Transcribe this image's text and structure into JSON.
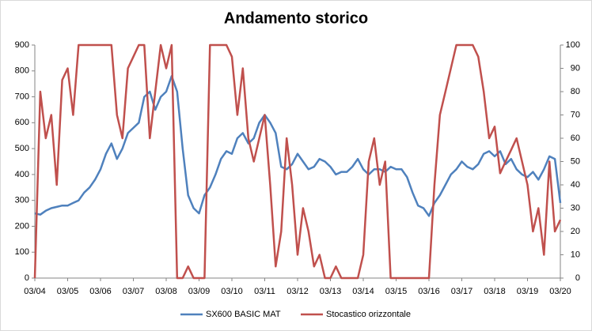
{
  "chart_data": {
    "type": "line",
    "title": "Andamento storico",
    "categories": [
      "03/04",
      null,
      null,
      null,
      null,
      null,
      "03/05",
      null,
      null,
      null,
      null,
      null,
      "03/06",
      null,
      null,
      null,
      null,
      null,
      "03/07",
      null,
      null,
      null,
      null,
      null,
      "03/08",
      null,
      null,
      null,
      null,
      null,
      "03/09",
      null,
      null,
      null,
      null,
      null,
      "03/10",
      null,
      null,
      null,
      null,
      null,
      "03/11",
      null,
      null,
      null,
      null,
      null,
      "03/12",
      null,
      null,
      null,
      null,
      null,
      "03/13",
      null,
      null,
      null,
      null,
      null,
      "03/14",
      null,
      null,
      null,
      null,
      null,
      "03/15",
      null,
      null,
      null,
      null,
      null,
      "03/16",
      null,
      null,
      null,
      null,
      null,
      "03/17",
      null,
      null,
      null,
      null,
      null,
      "03/18",
      null,
      null,
      null,
      null,
      null,
      "03/19",
      null,
      null,
      null,
      null,
      null,
      "03/20"
    ],
    "series": [
      {
        "name": "SX600 BASIC MAT",
        "color": "#4f81bd",
        "values": [
          250,
          245,
          260,
          270,
          275,
          280,
          280,
          290,
          300,
          330,
          350,
          380,
          420,
          480,
          520,
          460,
          500,
          560,
          580,
          600,
          700,
          720,
          650,
          700,
          720,
          780,
          720,
          500,
          320,
          270,
          250,
          320,
          350,
          400,
          460,
          490,
          480,
          540,
          560,
          520,
          540,
          600,
          630,
          600,
          560,
          430,
          420,
          440,
          480,
          450,
          420,
          430,
          460,
          450,
          430,
          400,
          410,
          410,
          430,
          460,
          420,
          400,
          420,
          420,
          410,
          430,
          420,
          420,
          390,
          330,
          280,
          270,
          240,
          290,
          320,
          360,
          400,
          420,
          450,
          430,
          420,
          440,
          480,
          490,
          470,
          490,
          440,
          460,
          420,
          400,
          390,
          410,
          380,
          420,
          470,
          460,
          290
        ]
      },
      {
        "name": "Stocastico orizzontale",
        "color": "#c0504d",
        "axis": "y2",
        "values": [
          0,
          80,
          60,
          70,
          40,
          85,
          90,
          70,
          100,
          100,
          100,
          100,
          100,
          100,
          100,
          70,
          60,
          90,
          95,
          100,
          100,
          60,
          80,
          100,
          90,
          100,
          0,
          0,
          5,
          0,
          0,
          0,
          100,
          100,
          100,
          100,
          95,
          70,
          90,
          60,
          50,
          60,
          70,
          40,
          5,
          20,
          60,
          40,
          10,
          30,
          20,
          5,
          10,
          0,
          0,
          5,
          0,
          0,
          0,
          0,
          10,
          50,
          60,
          40,
          50,
          0,
          0,
          0,
          0,
          0,
          0,
          0,
          0,
          40,
          70,
          80,
          90,
          100,
          100,
          100,
          100,
          95,
          80,
          60,
          65,
          45,
          50,
          55,
          60,
          50,
          40,
          20,
          30,
          10,
          50,
          20,
          25
        ]
      }
    ],
    "ylim": [
      0,
      900
    ],
    "yticks": [
      0,
      100,
      200,
      300,
      400,
      500,
      600,
      700,
      800,
      900
    ],
    "y2lim": [
      0,
      100
    ],
    "y2ticks": [
      0,
      10,
      20,
      30,
      40,
      50,
      60,
      70,
      80,
      90,
      100
    ],
    "legend": "bottom"
  }
}
